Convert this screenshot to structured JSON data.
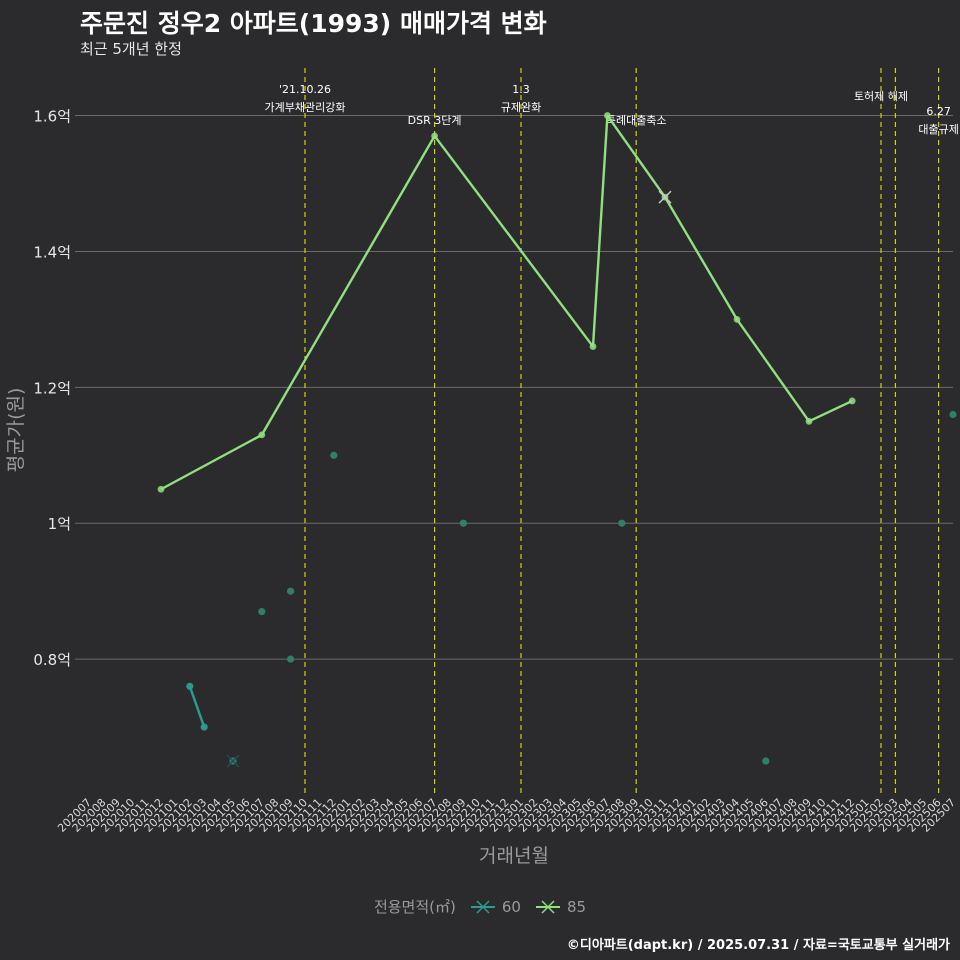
{
  "header": {
    "title": "주문진 정우2 아파트(1993) 매매가격 변화",
    "subtitle": "최근 5개년 한정",
    "caption": "©디아파트(dapt.kr) / 2025.07.31 / 자료=국토교통부 실거래가"
  },
  "legend": {
    "title": "전용면적(㎡)",
    "items": [
      {
        "label": "60",
        "color": "#2a9d8f"
      },
      {
        "label": "85",
        "color": "#90e07f"
      }
    ]
  },
  "colors": {
    "background": "#2b2b2d",
    "grid": "#6a6a6a",
    "event_line": "#d4d400",
    "series60": "#2a9d8f",
    "series85": "#90e07f",
    "scatter": "#2f7f6a"
  },
  "chart_data": {
    "type": "line",
    "title": "주문진 정우2 아파트(1993) 매매가격 변화",
    "xlabel": "거래년월",
    "ylabel": "평균가(원)",
    "ylim": [
      0.6,
      1.67
    ],
    "y_ticks": [
      {
        "value": 0.8,
        "label": "0.8억"
      },
      {
        "value": 1.0,
        "label": "1억"
      },
      {
        "value": 1.2,
        "label": "1.2억"
      },
      {
        "value": 1.4,
        "label": "1.4억"
      },
      {
        "value": 1.6,
        "label": "1.6억"
      }
    ],
    "categories": [
      "202007",
      "202008",
      "202009",
      "202010",
      "202011",
      "202012",
      "202101",
      "202102",
      "202103",
      "202104",
      "202105",
      "202106",
      "202107",
      "202108",
      "202109",
      "202110",
      "202111",
      "202112",
      "202201",
      "202202",
      "202203",
      "202204",
      "202205",
      "202206",
      "202207",
      "202208",
      "202209",
      "202210",
      "202211",
      "202212",
      "202301",
      "202302",
      "202303",
      "202304",
      "202305",
      "202306",
      "202307",
      "202308",
      "202309",
      "202310",
      "202311",
      "202312",
      "202401",
      "202402",
      "202403",
      "202404",
      "202405",
      "202406",
      "202407",
      "202408",
      "202409",
      "202410",
      "202411",
      "202412",
      "202501",
      "202502",
      "202503",
      "202504",
      "202505",
      "202506",
      "202507"
    ],
    "series": [
      {
        "name": "60",
        "type": "line",
        "points": [
          [
            "202102",
            0.76
          ],
          [
            "202103",
            0.7
          ]
        ]
      },
      {
        "name": "85",
        "type": "line",
        "points": [
          [
            "202012",
            1.05
          ],
          [
            "202107",
            1.13
          ],
          [
            "202207",
            1.57
          ],
          [
            "202306",
            1.26
          ],
          [
            "202307",
            1.6
          ],
          [
            "202311",
            1.48
          ],
          [
            "202404",
            1.3
          ],
          [
            "202409",
            1.15
          ],
          [
            "202412",
            1.18
          ]
        ]
      }
    ],
    "scatter": [
      [
        "202102",
        0.76
      ],
      [
        "202103",
        0.7
      ],
      [
        "202105",
        0.65
      ],
      [
        "202107",
        0.87
      ],
      [
        "202109",
        0.9
      ],
      [
        "202109",
        0.8
      ],
      [
        "202112",
        1.1
      ],
      [
        "202209",
        1.0
      ],
      [
        "202308",
        1.0
      ],
      [
        "202406",
        0.65
      ],
      [
        "202507",
        1.16
      ]
    ],
    "markers_x": [
      {
        "series": "60",
        "x": "202105",
        "y": 0.65
      },
      {
        "series": "85",
        "x": "202311",
        "y": 1.48
      }
    ],
    "events": [
      {
        "x": "202110",
        "lines": [
          "'21.10.26",
          "가계부채관리강화"
        ],
        "level": 1
      },
      {
        "x": "202207",
        "lines": [
          "DSR 3단계"
        ],
        "level": 2
      },
      {
        "x": "202301",
        "lines": [
          "1.3",
          "규제완화"
        ],
        "level": 1
      },
      {
        "x": "202309",
        "lines": [
          "특례대출축소"
        ],
        "level": 2
      },
      {
        "x": "202502",
        "lines": [
          "토허제 해제"
        ],
        "level": 0
      },
      {
        "x": "202503",
        "lines": [],
        "level": 0
      },
      {
        "x": "202506",
        "lines": [
          "6.27",
          "대출규제"
        ],
        "level": 3
      }
    ]
  }
}
